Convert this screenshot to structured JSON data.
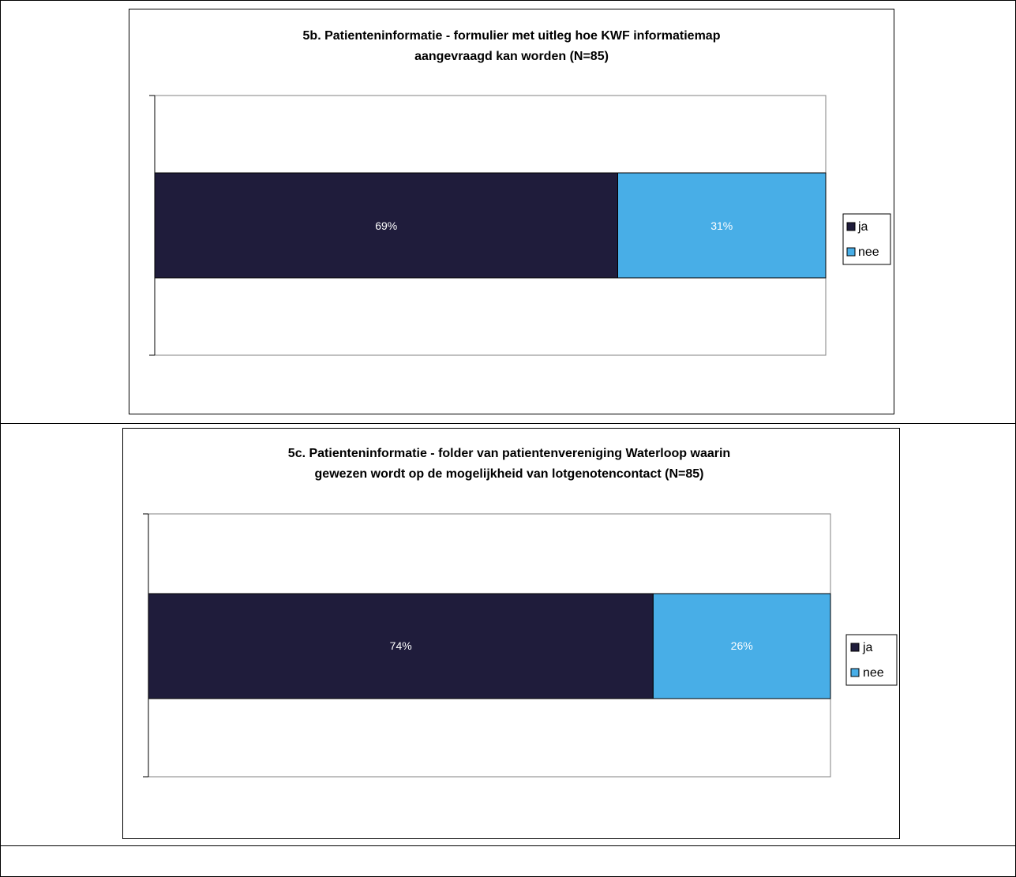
{
  "colors": {
    "ja": "#1f1c3b",
    "nee": "#48aee7"
  },
  "chart_data": [
    {
      "type": "bar",
      "orientation": "horizontal",
      "stacked": true,
      "title_lines": [
        "5b. Patienteninformatie - formulier met uitleg hoe KWF informatiemap",
        "aangevraagd kan worden (N=85)"
      ],
      "categories": [
        ""
      ],
      "series": [
        {
          "name": "ja",
          "values": [
            69
          ],
          "label": "69%"
        },
        {
          "name": "nee",
          "values": [
            31
          ],
          "label": "31%"
        }
      ],
      "xlim": [
        0,
        100
      ],
      "legend": {
        "placement": "right",
        "items": [
          "ja",
          "nee"
        ]
      },
      "grid": false
    },
    {
      "type": "bar",
      "orientation": "horizontal",
      "stacked": true,
      "title_lines": [
        "5c. Patienteninformatie - folder van patientenvereniging Waterloop waarin",
        "gewezen wordt op de mogelijkheid van lotgenotencontact (N=85)"
      ],
      "categories": [
        ""
      ],
      "series": [
        {
          "name": "ja",
          "values": [
            74
          ],
          "label": "74%"
        },
        {
          "name": "nee",
          "values": [
            26
          ],
          "label": "26%"
        }
      ],
      "xlim": [
        0,
        100
      ],
      "legend": {
        "placement": "right",
        "items": [
          "ja",
          "nee"
        ]
      },
      "grid": false
    }
  ]
}
